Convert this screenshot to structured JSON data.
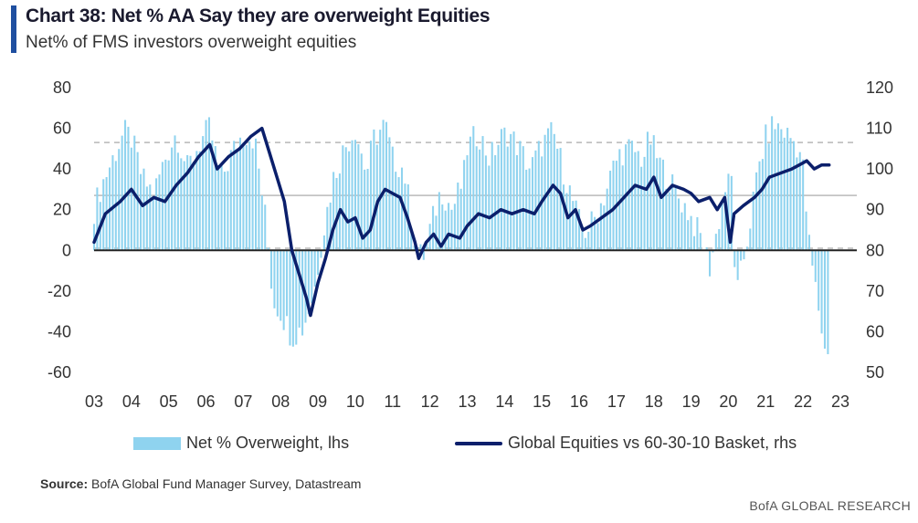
{
  "header": {
    "title": "Chart 38: Net % AA Say they are overweight Equities",
    "subtitle": "Net% of FMS investors overweight equities"
  },
  "colors": {
    "accent": "#1f4fa0",
    "bars": "#8fd3ef",
    "line": "#0b1f6b",
    "zero_line": "#222222",
    "ref_dashed": "#b8b8b8",
    "ref_solid": "#c4c4c4"
  },
  "legend": {
    "bars_label": "Net % Overweight, lhs",
    "line_label": "Global Equities vs 60-30-10 Basket, rhs"
  },
  "source": {
    "prefix": "Source:",
    "text": "BofA Global Fund Manager Survey, Datastream"
  },
  "brand": "BofA GLOBAL RESEARCH",
  "chart_data": {
    "type": "bar+line",
    "x_ticks": [
      "03",
      "04",
      "05",
      "06",
      "07",
      "08",
      "09",
      "10",
      "11",
      "12",
      "13",
      "14",
      "15",
      "16",
      "17",
      "18",
      "19",
      "20",
      "21",
      "22",
      "23"
    ],
    "x_range": [
      2003.0,
      2023.0
    ],
    "y_left": {
      "ticks": [
        80,
        60,
        40,
        20,
        0,
        -20,
        -40,
        -60
      ],
      "range": [
        -60,
        80
      ]
    },
    "y_right": {
      "ticks": [
        120,
        110,
        100,
        90,
        80,
        70,
        60,
        50
      ],
      "range": [
        50,
        120
      ]
    },
    "reference_lines": {
      "upper_dashed": 53,
      "mean_solid": 27,
      "lower_dashed": 1
    },
    "bar_anchors": [
      [
        2003.0,
        20
      ],
      [
        2003.2,
        32
      ],
      [
        2003.5,
        45
      ],
      [
        2003.8,
        58
      ],
      [
        2004.0,
        55
      ],
      [
        2004.3,
        35
      ],
      [
        2004.6,
        28
      ],
      [
        2004.9,
        45
      ],
      [
        2005.2,
        58
      ],
      [
        2005.5,
        40
      ],
      [
        2005.8,
        52
      ],
      [
        2006.1,
        60
      ],
      [
        2006.4,
        35
      ],
      [
        2006.7,
        48
      ],
      [
        2007.0,
        58
      ],
      [
        2007.3,
        55
      ],
      [
        2007.6,
        15
      ],
      [
        2007.8,
        -25
      ],
      [
        2008.0,
        -30
      ],
      [
        2008.3,
        -42
      ],
      [
        2008.6,
        -38
      ],
      [
        2008.9,
        -20
      ],
      [
        2009.1,
        5
      ],
      [
        2009.4,
        35
      ],
      [
        2009.7,
        50
      ],
      [
        2010.0,
        60
      ],
      [
        2010.3,
        38
      ],
      [
        2010.5,
        55
      ],
      [
        2010.8,
        62
      ],
      [
        2011.0,
        45
      ],
      [
        2011.3,
        40
      ],
      [
        2011.6,
        5
      ],
      [
        2011.8,
        -5
      ],
      [
        2012.0,
        10
      ],
      [
        2012.3,
        30
      ],
      [
        2012.6,
        20
      ],
      [
        2012.9,
        35
      ],
      [
        2013.0,
        50
      ],
      [
        2013.3,
        58
      ],
      [
        2013.6,
        45
      ],
      [
        2013.9,
        55
      ],
      [
        2014.1,
        58
      ],
      [
        2014.4,
        50
      ],
      [
        2014.7,
        40
      ],
      [
        2015.0,
        52
      ],
      [
        2015.3,
        58
      ],
      [
        2015.6,
        38
      ],
      [
        2015.9,
        20
      ],
      [
        2016.1,
        8
      ],
      [
        2016.4,
        15
      ],
      [
        2016.7,
        28
      ],
      [
        2016.9,
        40
      ],
      [
        2017.1,
        48
      ],
      [
        2017.4,
        50
      ],
      [
        2017.7,
        45
      ],
      [
        2017.9,
        55
      ],
      [
        2018.1,
        45
      ],
      [
        2018.4,
        35
      ],
      [
        2018.7,
        25
      ],
      [
        2018.9,
        20
      ],
      [
        2019.1,
        12
      ],
      [
        2019.3,
        5
      ],
      [
        2019.5,
        -8
      ],
      [
        2019.7,
        10
      ],
      [
        2019.9,
        30
      ],
      [
        2020.1,
        35
      ],
      [
        2020.2,
        -25
      ],
      [
        2020.5,
        5
      ],
      [
        2020.8,
        40
      ],
      [
        2021.0,
        55
      ],
      [
        2021.2,
        62
      ],
      [
        2021.4,
        60
      ],
      [
        2021.7,
        55
      ],
      [
        2021.9,
        50
      ],
      [
        2022.0,
        40
      ],
      [
        2022.15,
        5
      ],
      [
        2022.3,
        -15
      ],
      [
        2022.45,
        -32
      ],
      [
        2022.6,
        -52
      ],
      [
        2022.7,
        -45
      ]
    ],
    "line_points": [
      [
        2003.0,
        82
      ],
      [
        2003.3,
        89
      ],
      [
        2003.7,
        92
      ],
      [
        2004.0,
        95
      ],
      [
        2004.3,
        91
      ],
      [
        2004.6,
        93
      ],
      [
        2004.9,
        92
      ],
      [
        2005.2,
        96
      ],
      [
        2005.5,
        99
      ],
      [
        2005.8,
        103
      ],
      [
        2006.1,
        106
      ],
      [
        2006.3,
        100
      ],
      [
        2006.6,
        103
      ],
      [
        2006.9,
        105
      ],
      [
        2007.2,
        108
      ],
      [
        2007.5,
        110
      ],
      [
        2007.7,
        104
      ],
      [
        2007.9,
        98
      ],
      [
        2008.1,
        92
      ],
      [
        2008.3,
        80
      ],
      [
        2008.5,
        74
      ],
      [
        2008.7,
        68
      ],
      [
        2008.8,
        64
      ],
      [
        2009.0,
        72
      ],
      [
        2009.2,
        78
      ],
      [
        2009.4,
        85
      ],
      [
        2009.6,
        90
      ],
      [
        2009.8,
        87
      ],
      [
        2010.0,
        88
      ],
      [
        2010.2,
        83
      ],
      [
        2010.4,
        85
      ],
      [
        2010.6,
        92
      ],
      [
        2010.8,
        95
      ],
      [
        2011.0,
        94
      ],
      [
        2011.2,
        93
      ],
      [
        2011.4,
        88
      ],
      [
        2011.6,
        82
      ],
      [
        2011.7,
        78
      ],
      [
        2011.9,
        82
      ],
      [
        2012.1,
        84
      ],
      [
        2012.3,
        81
      ],
      [
        2012.5,
        84
      ],
      [
        2012.8,
        83
      ],
      [
        2013.0,
        86
      ],
      [
        2013.3,
        89
      ],
      [
        2013.6,
        88
      ],
      [
        2013.9,
        90
      ],
      [
        2014.2,
        89
      ],
      [
        2014.5,
        90
      ],
      [
        2014.8,
        89
      ],
      [
        2015.0,
        92
      ],
      [
        2015.3,
        96
      ],
      [
        2015.5,
        94
      ],
      [
        2015.7,
        88
      ],
      [
        2015.9,
        90
      ],
      [
        2016.1,
        85
      ],
      [
        2016.3,
        86
      ],
      [
        2016.6,
        88
      ],
      [
        2016.9,
        90
      ],
      [
        2017.2,
        93
      ],
      [
        2017.5,
        96
      ],
      [
        2017.8,
        95
      ],
      [
        2018.0,
        98
      ],
      [
        2018.2,
        93
      ],
      [
        2018.5,
        96
      ],
      [
        2018.8,
        95
      ],
      [
        2019.0,
        94
      ],
      [
        2019.2,
        92
      ],
      [
        2019.5,
        93
      ],
      [
        2019.7,
        90
      ],
      [
        2019.9,
        93
      ],
      [
        2020.05,
        82
      ],
      [
        2020.15,
        89
      ],
      [
        2020.4,
        91
      ],
      [
        2020.7,
        93
      ],
      [
        2020.9,
        95
      ],
      [
        2021.1,
        98
      ],
      [
        2021.4,
        99
      ],
      [
        2021.7,
        100
      ],
      [
        2021.9,
        101
      ],
      [
        2022.1,
        102
      ],
      [
        2022.3,
        100
      ],
      [
        2022.5,
        101
      ],
      [
        2022.7,
        101
      ]
    ]
  }
}
